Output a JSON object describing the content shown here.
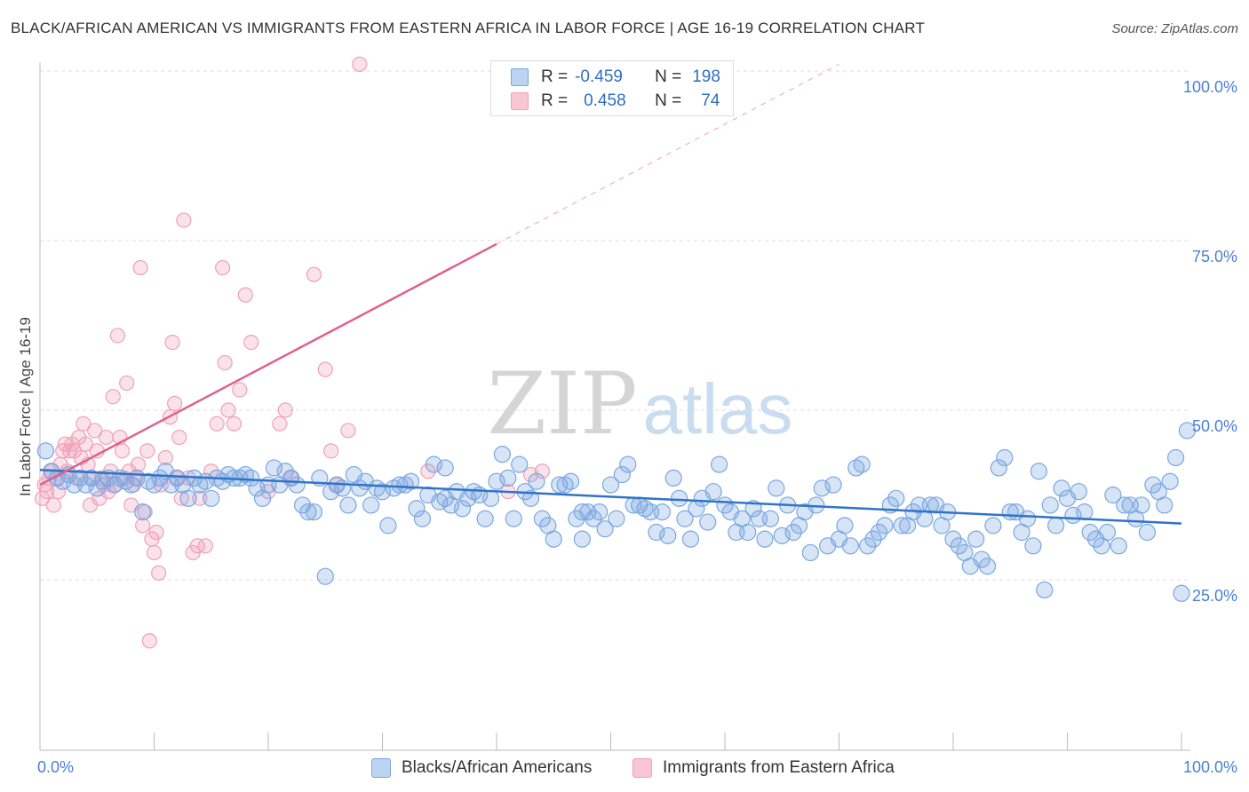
{
  "title": "BLACK/AFRICAN AMERICAN VS IMMIGRANTS FROM EASTERN AFRICA IN LABOR FORCE | AGE 16-19 CORRELATION CHART",
  "source": "Source: ZipAtlas.com",
  "watermark": {
    "zip": "ZIP",
    "atlas": "atlas"
  },
  "legend": {
    "rows": [
      {
        "r_label": "R =",
        "r_value": "-0.459",
        "n_label": "N =",
        "n_value": "198"
      },
      {
        "r_label": "R =",
        "r_value": "0.458",
        "n_label": "N =",
        "n_value": "74"
      }
    ]
  },
  "chart_data": {
    "type": "scatter",
    "title": "BLACK/AFRICAN AMERICAN VS IMMIGRANTS FROM EASTERN AFRICA IN LABOR FORCE | AGE 16-19 CORRELATION CHART",
    "xlabel": "",
    "ylabel": "In Labor Force | Age 16-19",
    "xlim": [
      0,
      100
    ],
    "ylim": [
      0,
      103
    ],
    "x_tick_labels": [
      "0.0%",
      "100.0%"
    ],
    "y_ticks": [
      25,
      50,
      75,
      100
    ],
    "y_tick_labels": [
      "25.0%",
      "50.0%",
      "75.0%",
      "100.0%"
    ],
    "colors": {
      "blue": "#7aa7e0",
      "blue_line": "#2f74c8",
      "pink": "#f0a0b8",
      "pink_line": "#e0608a",
      "tick_text": "#4a7fd0"
    },
    "series": [
      {
        "name": "Blacks/African Americans",
        "color": "#7aa7e0",
        "r": -0.459,
        "n": 198,
        "trend": {
          "x": [
            0,
            100
          ],
          "y": [
            41.2,
            33.3
          ]
        },
        "points": [
          [
            0.5,
            44
          ],
          [
            1,
            41
          ],
          [
            1.5,
            40
          ],
          [
            2,
            39.5
          ],
          [
            2.5,
            40.5
          ],
          [
            3,
            39
          ],
          [
            3.5,
            40
          ],
          [
            4,
            39
          ],
          [
            4.5,
            40
          ],
          [
            5,
            38.5
          ],
          [
            5.5,
            39.5
          ],
          [
            6,
            40
          ],
          [
            6.5,
            39
          ],
          [
            7,
            40
          ],
          [
            7.5,
            39.5
          ],
          [
            8,
            39
          ],
          [
            8.5,
            40
          ],
          [
            9,
            35
          ],
          [
            9.5,
            39.5
          ],
          [
            10,
            39
          ],
          [
            10.5,
            40
          ],
          [
            11,
            41
          ],
          [
            11.5,
            39
          ],
          [
            12,
            40
          ],
          [
            12.5,
            39
          ],
          [
            13,
            37
          ],
          [
            13.5,
            40
          ],
          [
            14,
            39
          ],
          [
            14.5,
            39.5
          ],
          [
            15,
            37
          ],
          [
            15.5,
            40
          ],
          [
            16,
            39.5
          ],
          [
            16.5,
            40.5
          ],
          [
            17,
            40
          ],
          [
            17.5,
            40
          ],
          [
            18,
            40.5
          ],
          [
            18.5,
            40
          ],
          [
            19,
            38.5
          ],
          [
            19.5,
            37
          ],
          [
            20,
            39
          ],
          [
            20.5,
            41.5
          ],
          [
            21,
            39
          ],
          [
            21.5,
            41
          ],
          [
            22,
            40
          ],
          [
            22.5,
            39
          ],
          [
            23,
            36
          ],
          [
            23.5,
            35
          ],
          [
            24,
            35
          ],
          [
            24.5,
            40
          ],
          [
            25,
            25.5
          ],
          [
            25.5,
            38
          ],
          [
            26,
            39
          ],
          [
            26.5,
            38.5
          ],
          [
            27,
            36
          ],
          [
            27.5,
            40.5
          ],
          [
            28,
            38.5
          ],
          [
            28.5,
            39.5
          ],
          [
            29,
            36
          ],
          [
            29.5,
            38.5
          ],
          [
            30,
            38
          ],
          [
            30.5,
            33
          ],
          [
            31,
            38.5
          ],
          [
            31.5,
            39
          ],
          [
            32,
            39
          ],
          [
            32.5,
            39.5
          ],
          [
            33,
            35.5
          ],
          [
            33.5,
            34
          ],
          [
            34,
            37.5
          ],
          [
            34.5,
            42
          ],
          [
            35,
            36.5
          ],
          [
            35.5,
            37
          ],
          [
            35.5,
            41.5
          ],
          [
            36,
            36
          ],
          [
            36.5,
            38
          ],
          [
            37,
            35.5
          ],
          [
            37.5,
            37
          ],
          [
            38,
            38
          ],
          [
            38.5,
            37.5
          ],
          [
            39,
            34
          ],
          [
            39.5,
            37
          ],
          [
            40,
            39.5
          ],
          [
            40.5,
            43.5
          ],
          [
            41,
            40
          ],
          [
            41.5,
            34
          ],
          [
            42,
            42
          ],
          [
            42.5,
            38
          ],
          [
            43,
            37
          ],
          [
            43.5,
            39.5
          ],
          [
            44,
            34
          ],
          [
            44.5,
            33
          ],
          [
            45,
            31
          ],
          [
            45.5,
            39
          ],
          [
            46,
            39
          ],
          [
            46.5,
            39.5
          ],
          [
            47,
            34
          ],
          [
            47.5,
            35
          ],
          [
            47.5,
            31
          ],
          [
            48,
            35
          ],
          [
            48.5,
            34
          ],
          [
            49,
            35
          ],
          [
            49.5,
            32.5
          ],
          [
            50,
            39
          ],
          [
            50.5,
            34
          ],
          [
            51,
            40.5
          ],
          [
            51.5,
            42
          ],
          [
            52,
            36
          ],
          [
            52.5,
            36
          ],
          [
            53,
            35.5
          ],
          [
            53.5,
            35
          ],
          [
            54,
            32
          ],
          [
            54.5,
            35
          ],
          [
            55,
            31.5
          ],
          [
            55.5,
            40
          ],
          [
            56,
            37
          ],
          [
            56.5,
            34
          ],
          [
            57,
            31
          ],
          [
            57.5,
            35.5
          ],
          [
            58,
            37
          ],
          [
            58.5,
            33.5
          ],
          [
            59,
            38
          ],
          [
            59.5,
            42
          ],
          [
            60,
            36
          ],
          [
            60.5,
            35
          ],
          [
            61,
            32
          ],
          [
            61.5,
            34
          ],
          [
            62,
            32
          ],
          [
            62.5,
            35.5
          ],
          [
            63,
            34
          ],
          [
            63.5,
            31
          ],
          [
            64,
            34
          ],
          [
            64.5,
            38.5
          ],
          [
            65,
            31.5
          ],
          [
            65.5,
            36
          ],
          [
            66,
            32
          ],
          [
            66.5,
            33
          ],
          [
            67,
            35
          ],
          [
            67.5,
            29
          ],
          [
            68,
            36
          ],
          [
            68.5,
            38.5
          ],
          [
            69,
            30
          ],
          [
            69.5,
            39
          ],
          [
            70,
            31
          ],
          [
            70.5,
            33
          ],
          [
            71,
            30
          ],
          [
            71.5,
            41.5
          ],
          [
            72,
            42
          ],
          [
            72.5,
            30
          ],
          [
            73,
            31
          ],
          [
            73.5,
            32
          ],
          [
            74,
            33
          ],
          [
            74.5,
            36
          ],
          [
            75,
            37
          ],
          [
            75.5,
            33
          ],
          [
            76,
            33
          ],
          [
            76.5,
            35
          ],
          [
            77,
            36
          ],
          [
            77.5,
            34
          ],
          [
            78,
            36
          ],
          [
            78.5,
            36
          ],
          [
            79,
            33
          ],
          [
            79.5,
            35
          ],
          [
            80,
            31
          ],
          [
            80.5,
            30
          ],
          [
            81,
            29
          ],
          [
            81.5,
            27
          ],
          [
            82,
            31
          ],
          [
            82.5,
            28
          ],
          [
            83,
            27
          ],
          [
            83.5,
            33
          ],
          [
            84,
            41.5
          ],
          [
            84.5,
            43
          ],
          [
            85,
            35
          ],
          [
            85.5,
            35
          ],
          [
            86,
            32
          ],
          [
            86.5,
            34
          ],
          [
            87,
            30
          ],
          [
            87.5,
            41
          ],
          [
            88,
            23.5
          ],
          [
            88.5,
            36
          ],
          [
            89,
            33
          ],
          [
            89.5,
            38.5
          ],
          [
            90,
            37
          ],
          [
            90.5,
            34.5
          ],
          [
            91,
            38
          ],
          [
            91.5,
            35
          ],
          [
            92,
            32
          ],
          [
            92.5,
            31
          ],
          [
            93,
            30
          ],
          [
            93.5,
            32
          ],
          [
            94,
            37.5
          ],
          [
            94.5,
            30
          ],
          [
            95,
            36
          ],
          [
            95.5,
            36
          ],
          [
            96,
            34
          ],
          [
            96.5,
            36
          ],
          [
            97,
            32
          ],
          [
            97.5,
            39
          ],
          [
            98,
            38
          ],
          [
            98.5,
            36
          ],
          [
            99,
            39.5
          ],
          [
            99.5,
            43
          ],
          [
            100,
            23
          ],
          [
            100.5,
            47
          ]
        ]
      },
      {
        "name": "Immigrants from Eastern Africa",
        "color": "#f0a0b8",
        "r": 0.458,
        "n": 74,
        "trend": {
          "x": [
            0,
            40
          ],
          "y": [
            39.0,
            74.5
          ]
        },
        "trend_dashed": {
          "x": [
            40,
            70
          ],
          "y": [
            74.5,
            101.0
          ]
        },
        "points": [
          [
            0.2,
            37
          ],
          [
            0.4,
            39
          ],
          [
            0.6,
            38
          ],
          [
            0.8,
            40
          ],
          [
            1,
            41
          ],
          [
            1.2,
            36
          ],
          [
            1.4,
            40
          ],
          [
            1.6,
            38
          ],
          [
            1.8,
            42
          ],
          [
            2,
            44
          ],
          [
            2.2,
            45
          ],
          [
            2.4,
            41
          ],
          [
            2.6,
            44
          ],
          [
            2.8,
            45
          ],
          [
            3,
            44
          ],
          [
            3.2,
            40
          ],
          [
            3.4,
            46
          ],
          [
            3.6,
            43
          ],
          [
            3.8,
            48
          ],
          [
            4,
            45
          ],
          [
            4.2,
            42
          ],
          [
            4.4,
            36
          ],
          [
            4.6,
            40
          ],
          [
            4.8,
            47
          ],
          [
            5,
            44
          ],
          [
            5.2,
            37
          ],
          [
            5.4,
            40
          ],
          [
            5.6,
            39
          ],
          [
            5.8,
            46
          ],
          [
            6,
            38
          ],
          [
            6.2,
            41
          ],
          [
            6.4,
            52
          ],
          [
            6.6,
            39
          ],
          [
            6.8,
            61
          ],
          [
            7,
            46
          ],
          [
            7.2,
            44
          ],
          [
            7.4,
            40
          ],
          [
            7.6,
            54
          ],
          [
            7.8,
            41
          ],
          [
            8,
            36
          ],
          [
            8.2,
            39
          ],
          [
            8.4,
            40
          ],
          [
            8.6,
            42
          ],
          [
            8.8,
            71
          ],
          [
            9,
            33
          ],
          [
            9.2,
            35
          ],
          [
            9.4,
            44
          ],
          [
            9.6,
            16
          ],
          [
            9.8,
            31
          ],
          [
            10,
            29
          ],
          [
            10.2,
            32
          ],
          [
            10.4,
            26
          ],
          [
            10.6,
            39
          ],
          [
            11,
            43
          ],
          [
            11.4,
            49
          ],
          [
            11.6,
            60
          ],
          [
            11.8,
            51
          ],
          [
            12,
            40
          ],
          [
            12.2,
            46
          ],
          [
            12.4,
            37
          ],
          [
            12.6,
            78
          ],
          [
            13,
            40
          ],
          [
            13.4,
            29
          ],
          [
            13.8,
            30
          ],
          [
            14,
            37
          ],
          [
            14.5,
            30
          ],
          [
            15,
            41
          ],
          [
            15.5,
            48
          ],
          [
            16,
            71
          ],
          [
            16.2,
            57
          ],
          [
            16.5,
            50
          ],
          [
            17,
            48
          ],
          [
            17.5,
            53
          ],
          [
            18,
            67
          ],
          [
            18.5,
            60
          ],
          [
            20,
            38
          ],
          [
            21,
            48
          ],
          [
            21.5,
            50
          ],
          [
            22,
            40
          ],
          [
            24,
            70
          ],
          [
            25,
            56
          ],
          [
            25.5,
            44
          ],
          [
            26,
            39
          ],
          [
            27,
            47
          ],
          [
            28,
            101
          ],
          [
            34,
            41
          ],
          [
            41,
            38
          ],
          [
            43,
            40.5
          ],
          [
            44,
            41
          ]
        ]
      }
    ]
  },
  "bottom_legend": [
    {
      "label": "Blacks/African Americans",
      "color": "#7aa7e0"
    },
    {
      "label": "Immigrants from Eastern Africa",
      "color": "#f0a0b8"
    }
  ]
}
